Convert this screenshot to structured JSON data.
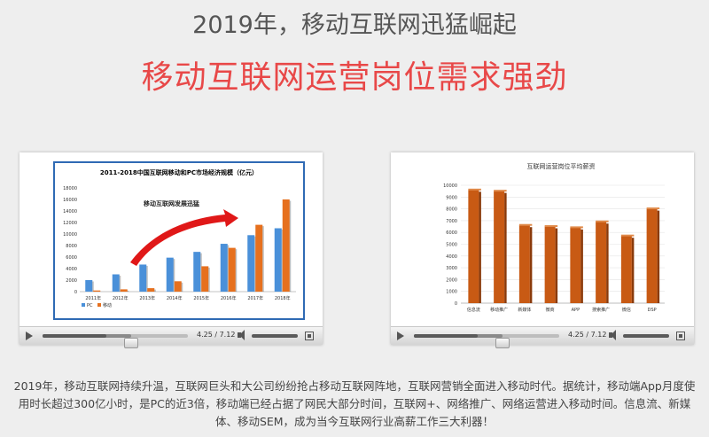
{
  "headline": {
    "line1": "2019年，移动互联网迅猛崛起",
    "line2": "移动互联网运营岗位需求强劲"
  },
  "colors": {
    "headline1": "#555555",
    "headline2": "#e84848",
    "pc_bar": "#4a90d9",
    "mobile_bar": "#e6701e",
    "salary_bar": "#c85a14",
    "arrow": "#e01818",
    "frame": "#2f6ab4"
  },
  "chart_data": [
    {
      "type": "bar",
      "title": "2011-2018中国互联网移动和PC市场经济规模（亿元）",
      "annotation": "移动互联网发展迅猛",
      "categories": [
        "2011年",
        "2012年",
        "2013年",
        "2014年",
        "2015年",
        "2016年",
        "2017年",
        "2018年"
      ],
      "series": [
        {
          "name": "PC",
          "values": [
            2000,
            3000,
            4700,
            5900,
            6900,
            8300,
            9800,
            11000
          ]
        },
        {
          "name": "移动",
          "values": [
            200,
            400,
            600,
            1800,
            4400,
            7600,
            11600,
            16000
          ]
        }
      ],
      "ylim": [
        0,
        18000
      ],
      "yticks": [
        "0",
        "2000",
        "4000",
        "6000",
        "8000",
        "10000",
        "12000",
        "14000",
        "16000",
        "18000"
      ],
      "legend": "bottom-left"
    },
    {
      "type": "bar",
      "title": "互联网运营岗位平均薪资",
      "categories": [
        "信息流",
        "移动推广",
        "新媒体",
        "微商",
        "APP",
        "搜索推广",
        "微信",
        "DSP"
      ],
      "values": [
        9600,
        9500,
        6600,
        6500,
        6400,
        6900,
        5700,
        8000
      ],
      "ylim": [
        0,
        10000
      ],
      "yticks": [
        "0",
        "1000",
        "2000",
        "3000",
        "4000",
        "5000",
        "6000",
        "7000",
        "8000",
        "9000",
        "10000"
      ]
    }
  ],
  "players": [
    {
      "time": "4.25 / 7.12",
      "progress": 0.44
    },
    {
      "time": "4.25 / 7.12",
      "progress": 0.44
    }
  ],
  "caption": "2019年，移动互联网持续升温，互联网巨头和大公司纷纷抢占移动互联网阵地，互联网营销全面进入移动时代。据统计，移动端App月度使用时长超过300亿小时，是PC的近3倍，移动端已经占据了网民大部分时间，互联网+、网络推广、网络运营进入移动时间。信息流、新媒体、移动SEM，成为当今互联网行业高薪工作三大利器！"
}
